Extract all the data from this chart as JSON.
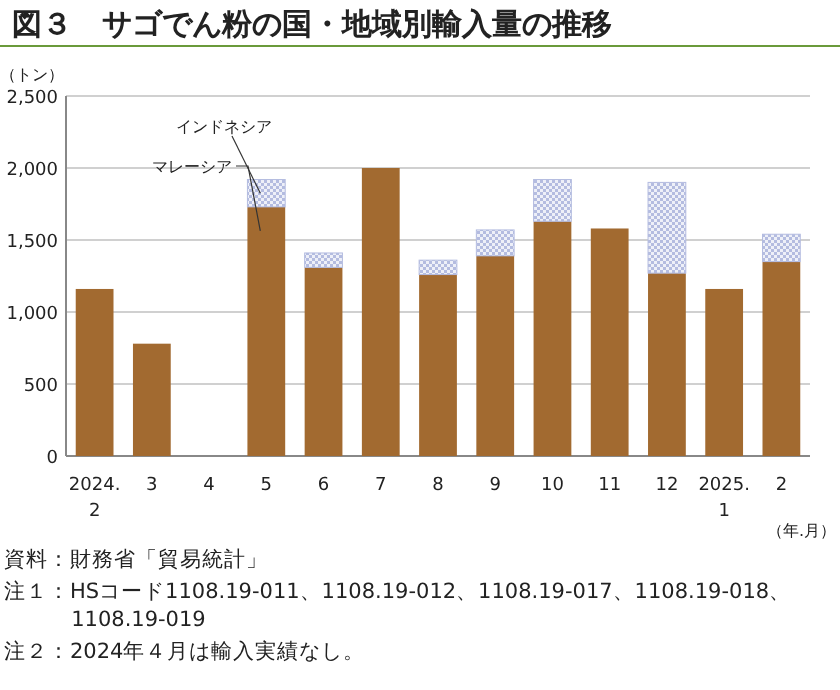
{
  "chart_data": {
    "type": "bar",
    "title": "図３　サゴでん粉の国・地域別輸入量の推移",
    "ylabel": "（トン）",
    "xlabel": "（年.月）",
    "categories": [
      "2024.\n2",
      "3",
      "4",
      "5",
      "6",
      "7",
      "8",
      "9",
      "10",
      "11",
      "12",
      "2025.\n1",
      "2"
    ],
    "stacked": true,
    "series": [
      {
        "name": "マレーシア",
        "color": "#a26a30",
        "values": [
          1160,
          780,
          null,
          1730,
          1310,
          2000,
          1260,
          1390,
          1630,
          1580,
          1270,
          1160,
          1350
        ]
      },
      {
        "name": "インドネシア",
        "color": "#b4bce0",
        "values": [
          null,
          null,
          null,
          190,
          100,
          null,
          100,
          180,
          290,
          null,
          630,
          null,
          190
        ]
      }
    ],
    "ylim": [
      0,
      2500
    ],
    "yticks": [
      0,
      {
        "value": 500,
        "label": "500"
      },
      {
        "value": 1000,
        "label": "1,000"
      },
      {
        "value": 1500,
        "label": "1,500"
      },
      {
        "value": 2000,
        "label": "2,000"
      },
      {
        "value": 2500,
        "label": "2,500"
      }
    ],
    "grid": "y",
    "legend": false,
    "annotations": [
      "資料：財務省「貿易統計」",
      "注１：HSコード1108.19-011、1108.19-012、1108.19-017、1108.19-018、1108.19-019",
      "注２：2024年４月は輸入実績なし。"
    ]
  }
}
